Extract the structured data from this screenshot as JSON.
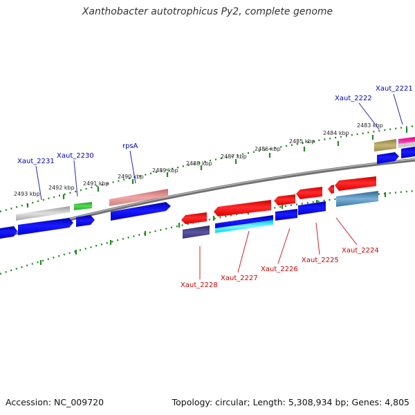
{
  "title": "Xanthobacter autotrophicus Py2, complete genome",
  "footer": {
    "accession": "Accession: NC_009720",
    "topology": "Topology: circular; Length: 5,308,934 bp; Genes: 4,805"
  },
  "colors": {
    "forward_label": "#0000bb",
    "reverse_label": "#cc0000",
    "backbone": "#808080",
    "tick": "#228822"
  },
  "scale_labels": [
    "2493 kbp",
    "2492 kbp",
    "2491 kbp",
    "2490 kbp",
    "2489 kbp",
    "2488 kbp",
    "2487 kbp",
    "2486 kbp",
    "2485 kbp",
    "2484 kbp",
    "2483 kbp"
  ],
  "gene_labels": [
    {
      "text": "Xaut_2231",
      "strand": "forward"
    },
    {
      "text": "Xaut_2230",
      "strand": "forward"
    },
    {
      "text": "rpsA",
      "strand": "forward"
    },
    {
      "text": "Xaut_2222",
      "strand": "forward"
    },
    {
      "text": "Xaut_2221",
      "strand": "forward"
    },
    {
      "text": "Xaut_2228",
      "strand": "reverse"
    },
    {
      "text": "Xaut_2227",
      "strand": "reverse"
    },
    {
      "text": "Xaut_2226",
      "strand": "reverse"
    },
    {
      "text": "Xaut_2225",
      "strand": "reverse"
    },
    {
      "text": "Xaut_2224",
      "strand": "reverse"
    }
  ]
}
